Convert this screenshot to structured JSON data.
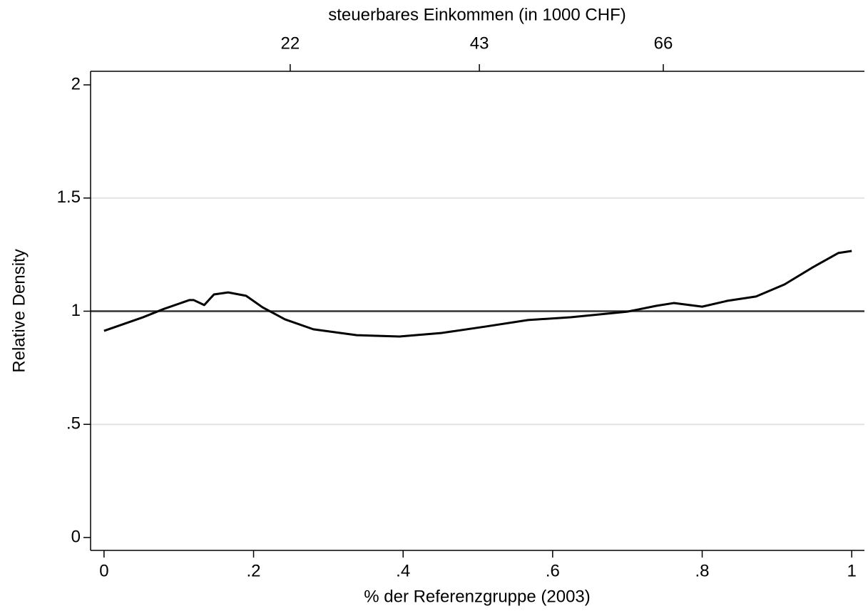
{
  "chart_data": {
    "type": "line",
    "x_label": "% der Referenzgruppe (2003)",
    "y_label": "Relative Density",
    "top_axis_label": "steuerbares Einkommen (in 1000 CHF)",
    "xlim": [
      -0.018,
      1.017
    ],
    "ylim": [
      -0.057,
      2.06
    ],
    "xticks": [
      0,
      {
        "value": 0.2,
        "label": ".2"
      },
      {
        "value": 0.4,
        "label": ".4"
      },
      {
        "value": 0.6,
        "label": ".6"
      },
      {
        "value": 0.8,
        "label": ".8"
      },
      1
    ],
    "yticks": [
      0,
      {
        "value": 0.5,
        "label": ".5"
      },
      1,
      1.5,
      2
    ],
    "top_xticks": [
      {
        "value": 0.249,
        "label": "22"
      },
      {
        "value": 0.502,
        "label": "43"
      },
      {
        "value": 0.748,
        "label": "66"
      }
    ],
    "hline": 1,
    "grid": true,
    "series": [
      {
        "color": "#000000",
        "x": [
          0,
          0.052,
          0.08,
          0.114,
          0.12,
          0.134,
          0.147,
          0.166,
          0.19,
          0.212,
          0.242,
          0.28,
          0.338,
          0.395,
          0.452,
          0.51,
          0.567,
          0.624,
          0.7,
          0.739,
          0.762,
          0.8,
          0.834,
          0.872,
          0.91,
          0.948,
          0.982,
          1
        ],
        "values": [
          0.913,
          0.973,
          1.01,
          1.049,
          1.049,
          1.027,
          1.074,
          1.083,
          1.068,
          1.017,
          0.964,
          0.92,
          0.894,
          0.888,
          0.904,
          0.932,
          0.961,
          0.973,
          0.998,
          1.024,
          1.036,
          1.02,
          1.046,
          1.065,
          1.118,
          1.194,
          1.257,
          1.266
        ]
      }
    ]
  }
}
